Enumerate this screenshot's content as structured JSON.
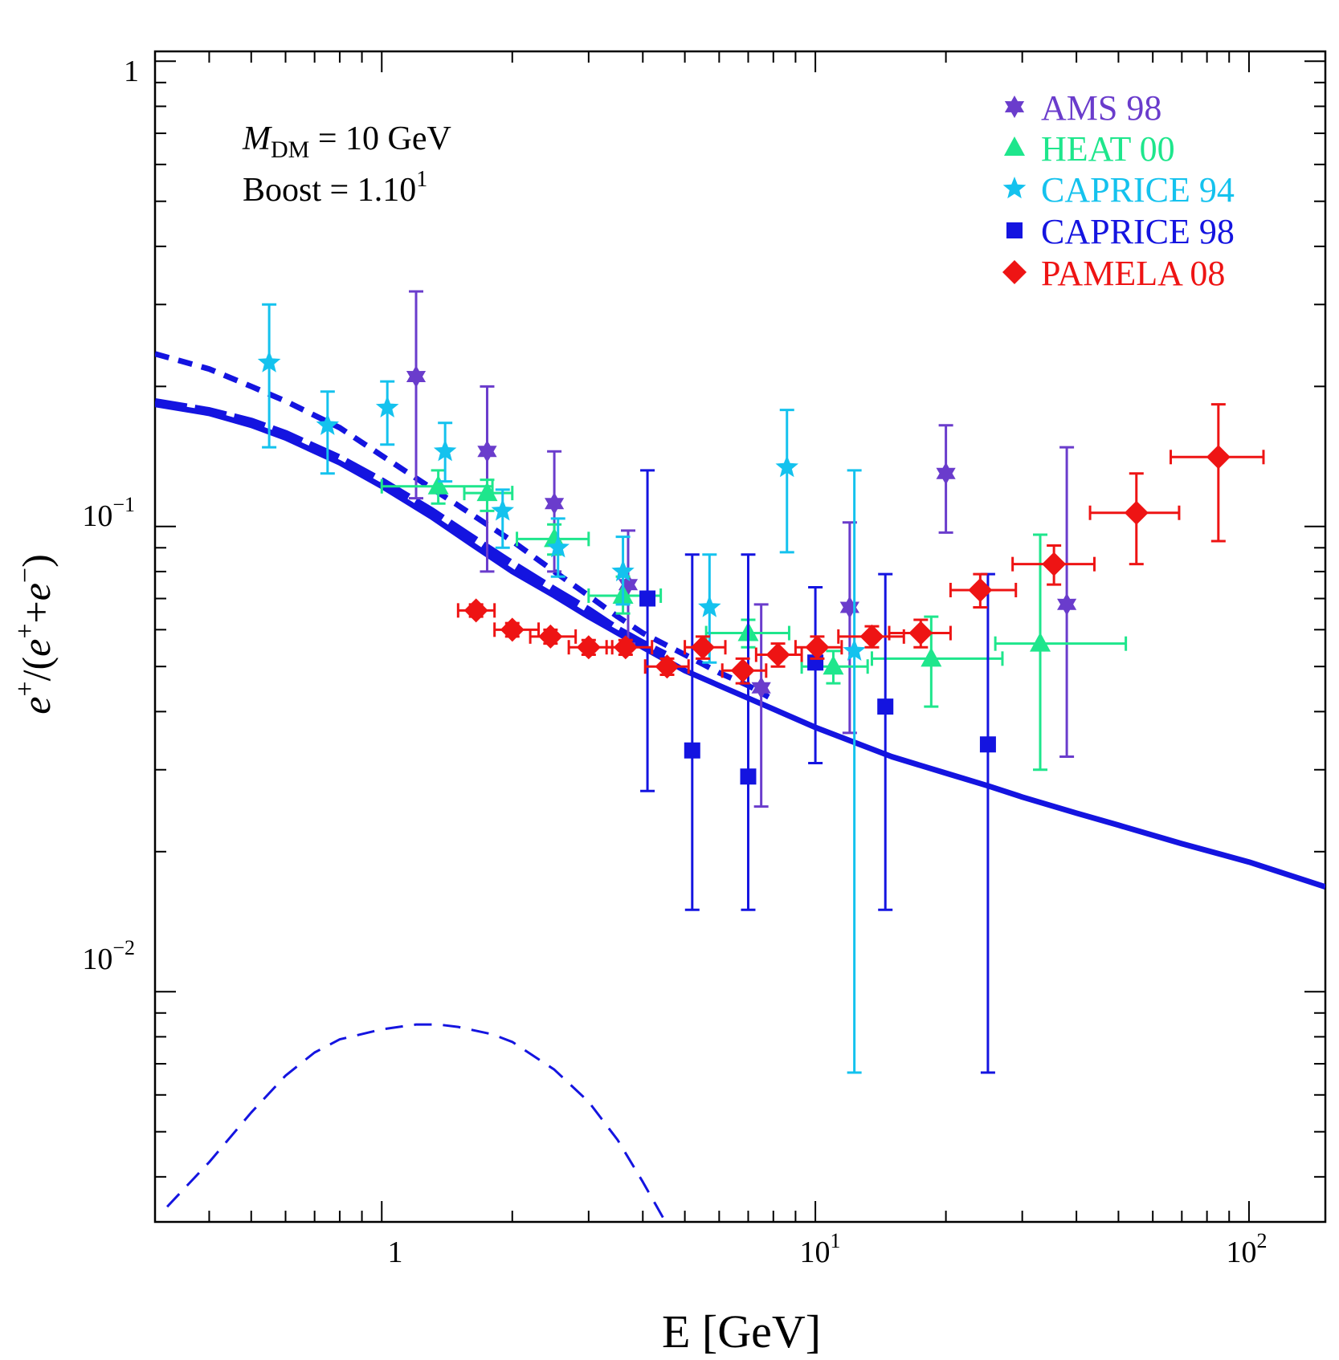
{
  "chart_data": {
    "type": "scatter",
    "title": "",
    "xlabel": "E [GeV]",
    "ylabel": "e+/(e+ + e−)",
    "ylabel_parts": {
      "a": "e",
      "b": "+",
      "c": "/(",
      "d": "e",
      "e": "+",
      "f": "+",
      "g": "e",
      "h": "−",
      "i": ")"
    },
    "x_scale": "log",
    "y_scale": "log",
    "xlim": [
      0.3,
      150
    ],
    "ylim": [
      0.0032,
      1.05
    ],
    "x_ticks": [
      {
        "base": "1",
        "exp": ""
      },
      {
        "base": "10",
        "exp": "1"
      },
      {
        "base": "10",
        "exp": "2"
      }
    ],
    "y_ticks": [
      {
        "base": "1",
        "exp": ""
      },
      {
        "base": "10",
        "exp": "−1"
      },
      {
        "base": "10",
        "exp": "−2"
      }
    ],
    "annotations": {
      "mass_symbol": "M",
      "mass_sub": "DM",
      "mass_value": " = 10 GeV",
      "boost_label": "Boost = 1.10",
      "boost_exp": "1"
    },
    "legend": {
      "position": "top-right"
    },
    "colors": {
      "AMS 98": "#6a3ccc",
      "HEAT 00": "#1ee68c",
      "CAPRICE 94": "#14c2ee",
      "CAPRICE 98": "#1414e0",
      "PAMELA 08": "#ee1414",
      "model": "#1414e0"
    },
    "series": [
      {
        "name": "AMS 98",
        "marker": "star6",
        "points": [
          {
            "x": 1.2,
            "y": 0.21,
            "yerr": [
              0.115,
              0.32
            ]
          },
          {
            "x": 1.75,
            "y": 0.145,
            "yerr": [
              0.08,
              0.2
            ]
          },
          {
            "x": 2.5,
            "y": 0.112,
            "yerr": [
              0.08,
              0.145
            ]
          },
          {
            "x": 3.7,
            "y": 0.075,
            "yerr": [
              0.056,
              0.098
            ]
          },
          {
            "x": 7.5,
            "y": 0.045,
            "yerr": [
              0.025,
              0.068
            ]
          },
          {
            "x": 12.0,
            "y": 0.067,
            "yerr": [
              0.036,
              0.102
            ]
          },
          {
            "x": 20.0,
            "y": 0.13,
            "yerr": [
              0.097,
              0.165
            ]
          },
          {
            "x": 38.0,
            "y": 0.068,
            "yerr": [
              0.032,
              0.148
            ]
          }
        ]
      },
      {
        "name": "HEAT 00",
        "marker": "triangle",
        "points": [
          {
            "x": 1.35,
            "y": 0.122,
            "xerr": [
              1.0,
              1.8
            ],
            "yerr": [
              0.112,
              0.132
            ]
          },
          {
            "x": 1.75,
            "y": 0.118,
            "xerr": [
              1.55,
              2.0
            ],
            "yerr": [
              0.108,
              0.126
            ]
          },
          {
            "x": 2.5,
            "y": 0.094,
            "xerr": [
              2.05,
              3.0
            ],
            "yerr": [
              0.087,
              0.101
            ]
          },
          {
            "x": 3.6,
            "y": 0.071,
            "xerr": [
              3.0,
              4.4
            ],
            "yerr": [
              0.065,
              0.078
            ]
          },
          {
            "x": 7.0,
            "y": 0.059,
            "xerr": [
              5.6,
              8.7
            ],
            "yerr": [
              0.055,
              0.063
            ]
          },
          {
            "x": 11.0,
            "y": 0.05,
            "xerr": [
              9.3,
              13.2
            ],
            "yerr": [
              0.046,
              0.054
            ]
          },
          {
            "x": 18.5,
            "y": 0.052,
            "xerr": [
              13.5,
              27.0
            ],
            "yerr": [
              0.041,
              0.064
            ]
          },
          {
            "x": 33.0,
            "y": 0.056,
            "xerr": [
              26.0,
              52.0
            ],
            "yerr": [
              0.03,
              0.096
            ]
          }
        ]
      },
      {
        "name": "CAPRICE 94",
        "marker": "star5",
        "points": [
          {
            "x": 0.55,
            "y": 0.225,
            "yerr": [
              0.148,
              0.3
            ]
          },
          {
            "x": 0.75,
            "y": 0.165,
            "yerr": [
              0.13,
              0.195
            ]
          },
          {
            "x": 1.03,
            "y": 0.18,
            "yerr": [
              0.15,
              0.205
            ]
          },
          {
            "x": 1.4,
            "y": 0.145,
            "yerr": [
              0.125,
              0.167
            ]
          },
          {
            "x": 1.9,
            "y": 0.108,
            "yerr": [
              0.09,
              0.12
            ]
          },
          {
            "x": 2.55,
            "y": 0.09,
            "yerr": [
              0.078,
              0.104
            ]
          },
          {
            "x": 3.6,
            "y": 0.08,
            "yerr": [
              0.068,
              0.095
            ]
          },
          {
            "x": 5.7,
            "y": 0.067,
            "yerr": [
              0.051,
              0.087
            ]
          },
          {
            "x": 8.6,
            "y": 0.134,
            "yerr": [
              0.088,
              0.178
            ]
          },
          {
            "x": 12.3,
            "y": 0.054,
            "yerr": [
              0.0067,
              0.132
            ]
          }
        ]
      },
      {
        "name": "CAPRICE 98",
        "marker": "square",
        "points": [
          {
            "x": 4.1,
            "y": 0.07,
            "yerr": [
              0.027,
              0.132
            ]
          },
          {
            "x": 5.2,
            "y": 0.033,
            "yerr": [
              0.015,
              0.087
            ]
          },
          {
            "x": 7.0,
            "y": 0.029,
            "yerr": [
              0.015,
              0.087
            ]
          },
          {
            "x": 10.0,
            "y": 0.051,
            "yerr": [
              0.031,
              0.074
            ]
          },
          {
            "x": 14.5,
            "y": 0.041,
            "yerr": [
              0.015,
              0.079
            ]
          },
          {
            "x": 25.0,
            "y": 0.034,
            "yerr": [
              0.0067,
              0.079
            ]
          }
        ]
      },
      {
        "name": "PAMELA 08",
        "marker": "diamond",
        "points": [
          {
            "x": 1.65,
            "y": 0.066,
            "xerr": [
              1.5,
              1.82
            ],
            "yerr": [
              0.064,
              0.068
            ]
          },
          {
            "x": 2.0,
            "y": 0.06,
            "xerr": [
              1.82,
              2.3
            ],
            "yerr": [
              0.058,
              0.062
            ]
          },
          {
            "x": 2.45,
            "y": 0.058,
            "xerr": [
              2.2,
              2.8
            ],
            "yerr": [
              0.056,
              0.06
            ]
          },
          {
            "x": 3.0,
            "y": 0.055,
            "xerr": [
              2.7,
              3.4
            ],
            "yerr": [
              0.053,
              0.057
            ]
          },
          {
            "x": 3.65,
            "y": 0.055,
            "xerr": [
              3.3,
              4.2
            ],
            "yerr": [
              0.053,
              0.057
            ]
          },
          {
            "x": 4.55,
            "y": 0.05,
            "xerr": [
              4.05,
              5.1
            ],
            "yerr": [
              0.048,
              0.052
            ]
          },
          {
            "x": 5.5,
            "y": 0.055,
            "xerr": [
              5.0,
              6.2
            ],
            "yerr": [
              0.052,
              0.058
            ]
          },
          {
            "x": 6.8,
            "y": 0.049,
            "xerr": [
              6.1,
              7.7
            ],
            "yerr": [
              0.046,
              0.052
            ]
          },
          {
            "x": 8.2,
            "y": 0.053,
            "xerr": [
              7.3,
              9.3
            ],
            "yerr": [
              0.05,
              0.056
            ]
          },
          {
            "x": 10.1,
            "y": 0.055,
            "xerr": [
              9.0,
              11.5
            ],
            "yerr": [
              0.052,
              0.058
            ]
          },
          {
            "x": 13.5,
            "y": 0.058,
            "xerr": [
              11.3,
              16.0
            ],
            "yerr": [
              0.055,
              0.061
            ]
          },
          {
            "x": 17.5,
            "y": 0.059,
            "xerr": [
              14.8,
              20.5
            ],
            "yerr": [
              0.055,
              0.063
            ]
          },
          {
            "x": 24.0,
            "y": 0.073,
            "xerr": [
              20.5,
              29.0
            ],
            "yerr": [
              0.067,
              0.079
            ]
          },
          {
            "x": 35.5,
            "y": 0.083,
            "xerr": [
              28.5,
              44.0
            ],
            "yerr": [
              0.075,
              0.091
            ]
          },
          {
            "x": 55.0,
            "y": 0.107,
            "xerr": [
              43.0,
              69.0
            ],
            "yerr": [
              0.083,
              0.13
            ]
          },
          {
            "x": 85.0,
            "y": 0.141,
            "xerr": [
              66.0,
              108.0
            ],
            "yerr": [
              0.093,
              0.183
            ]
          }
        ]
      }
    ],
    "lines": [
      {
        "name": "background (solid)",
        "style": "solid",
        "width": 7,
        "x": [
          0.3,
          0.4,
          0.5,
          0.6,
          0.8,
          1.0,
          1.3,
          1.6,
          2.0,
          2.5,
          3.0,
          4.0,
          5.0,
          6.0,
          8.0,
          10.0,
          15.0,
          20.0,
          25.0,
          30.0,
          40.0,
          50.0,
          70.0,
          100.0,
          150.0
        ],
        "y": [
          0.183,
          0.175,
          0.165,
          0.155,
          0.137,
          0.122,
          0.105,
          0.092,
          0.08,
          0.071,
          0.064,
          0.055,
          0.049,
          0.0455,
          0.0405,
          0.037,
          0.032,
          0.0295,
          0.0277,
          0.0262,
          0.0242,
          0.0228,
          0.0208,
          0.019,
          0.0168
        ]
      },
      {
        "name": "total (thick dashed)",
        "style": "dashed",
        "width": 10,
        "x": [
          0.3,
          0.4,
          0.5,
          0.6,
          0.8,
          1.0,
          1.3,
          1.6,
          2.0,
          2.5,
          3.0,
          3.5,
          4.0,
          4.5
        ],
        "y": [
          0.185,
          0.177,
          0.168,
          0.158,
          0.14,
          0.125,
          0.108,
          0.095,
          0.083,
          0.073,
          0.066,
          0.06,
          0.056,
          0.053
        ]
      },
      {
        "name": "total boosted (short dashed)",
        "style": "dotted",
        "width": 7,
        "x": [
          0.3,
          0.4,
          0.5,
          0.6,
          0.8,
          1.0,
          1.2,
          1.5,
          2.0,
          2.5,
          3.0,
          3.5,
          4.0,
          5.0,
          6.0,
          7.0,
          7.8
        ],
        "y": [
          0.235,
          0.218,
          0.2,
          0.186,
          0.163,
          0.142,
          0.127,
          0.111,
          0.093,
          0.08,
          0.071,
          0.064,
          0.059,
          0.053,
          0.0485,
          0.0455,
          0.043
        ]
      },
      {
        "name": "dark matter signal (thin dashed)",
        "style": "dashed",
        "width": 3,
        "x": [
          0.32,
          0.4,
          0.5,
          0.6,
          0.7,
          0.8,
          1.0,
          1.2,
          1.35,
          1.5,
          1.8,
          2.0,
          2.5,
          3.0,
          3.5,
          4.0,
          4.6
        ],
        "y": [
          0.00345,
          0.0043,
          0.0055,
          0.0066,
          0.0074,
          0.0079,
          0.0083,
          0.0085,
          0.0085,
          0.0084,
          0.0081,
          0.0078,
          0.0068,
          0.0058,
          0.0048,
          0.0039,
          0.0031
        ]
      }
    ]
  }
}
